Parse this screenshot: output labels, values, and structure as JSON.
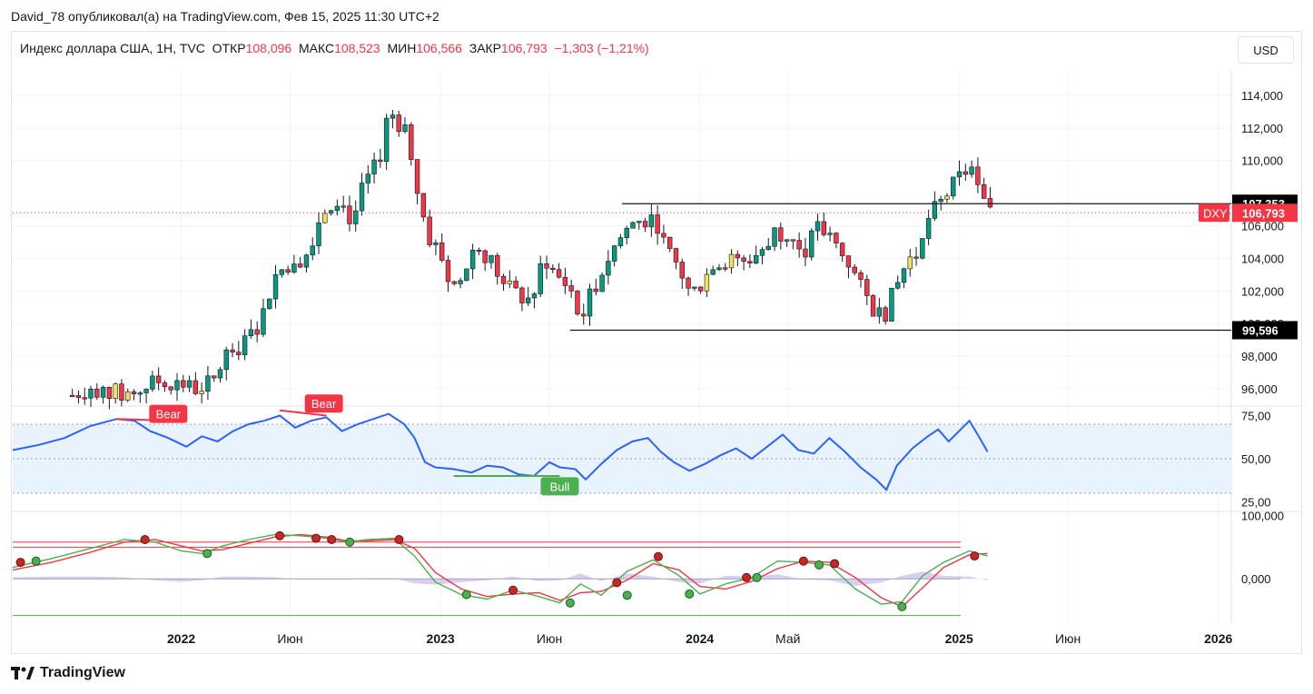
{
  "header": {
    "published": "David_78 опубликовал(а) на TradingView.com, Фев 15, 2025 11:30 UTC+2"
  },
  "legend": {
    "symbol": "Индекс доллара США, 1Н, TVC",
    "open_label": "ОТКР",
    "open": "108,096",
    "high_label": "МАКС",
    "high": "108,523",
    "low_label": "МИН",
    "low": "106,566",
    "close_label": "ЗАКР",
    "close": "106,793",
    "change": "−1,303 (−1,21%)"
  },
  "currency_button": "USD",
  "brand": {
    "name": "TradingView",
    "logo": "tradingview-logo-icon"
  },
  "colors": {
    "up": "#089981",
    "down": "#f23645",
    "rsi": "#2962ff",
    "highlight": "#f2e15c"
  },
  "chart_data": {
    "type": "candlestick",
    "series_name": "DXY",
    "price_axis": {
      "ticks": [
        "114,000",
        "112,000",
        "110,000",
        "106,000",
        "104,000",
        "102,000",
        "100,000",
        "98,000",
        "96,000"
      ],
      "range": [
        95.0,
        115.5
      ]
    },
    "x_axis": {
      "labels": [
        {
          "text": "2022",
          "t": 2022.0,
          "bold": true
        },
        {
          "text": "Июн",
          "t": 2022.42,
          "bold": false
        },
        {
          "text": "2023",
          "t": 2023.0,
          "bold": true
        },
        {
          "text": "Июн",
          "t": 2023.42,
          "bold": false
        },
        {
          "text": "2024",
          "t": 2024.0,
          "bold": true
        },
        {
          "text": "Май",
          "t": 2024.34,
          "bold": false
        },
        {
          "text": "2025",
          "t": 2025.0,
          "bold": true
        },
        {
          "text": "Июн",
          "t": 2025.42,
          "bold": false
        },
        {
          "text": "2026",
          "t": 2026.0,
          "bold": true
        }
      ],
      "range": [
        2021.35,
        2026.05
      ]
    },
    "price_path": [
      [
        2021.58,
        95.6
      ],
      [
        2021.65,
        96.1
      ],
      [
        2021.72,
        95.8
      ],
      [
        2021.8,
        95.6
      ],
      [
        2021.87,
        96.2
      ],
      [
        2021.93,
        96.6
      ],
      [
        2022.0,
        96.2
      ],
      [
        2022.06,
        96.0
      ],
      [
        2022.12,
        96.4
      ],
      [
        2022.18,
        98.3
      ],
      [
        2022.24,
        98.7
      ],
      [
        2022.3,
        99.9
      ],
      [
        2022.36,
        102.9
      ],
      [
        2022.42,
        103.8
      ],
      [
        2022.48,
        104.2
      ],
      [
        2022.54,
        106.8
      ],
      [
        2022.6,
        107.8
      ],
      [
        2022.66,
        106.3
      ],
      [
        2022.71,
        108.7
      ],
      [
        2022.76,
        109.8
      ],
      [
        2022.8,
        113.1
      ],
      [
        2022.84,
        112.3
      ],
      [
        2022.88,
        111.1
      ],
      [
        2022.92,
        107.3
      ],
      [
        2022.96,
        105.1
      ],
      [
        2023.0,
        104.3
      ],
      [
        2023.04,
        102.2
      ],
      [
        2023.08,
        102.7
      ],
      [
        2023.13,
        104.8
      ],
      [
        2023.18,
        104.2
      ],
      [
        2023.24,
        102.5
      ],
      [
        2023.3,
        101.7
      ],
      [
        2023.35,
        101.4
      ],
      [
        2023.4,
        104.1
      ],
      [
        2023.44,
        103.0
      ],
      [
        2023.5,
        102.2
      ],
      [
        2023.54,
        100.1
      ],
      [
        2023.58,
        101.8
      ],
      [
        2023.63,
        103.5
      ],
      [
        2023.68,
        105.0
      ],
      [
        2023.74,
        106.2
      ],
      [
        2023.78,
        106.4
      ],
      [
        2023.83,
        106.5
      ],
      [
        2023.87,
        104.4
      ],
      [
        2023.92,
        103.4
      ],
      [
        2023.96,
        101.9
      ],
      [
        2024.0,
        102.1
      ],
      [
        2024.05,
        103.8
      ],
      [
        2024.1,
        103.9
      ],
      [
        2024.16,
        103.8
      ],
      [
        2024.21,
        104.1
      ],
      [
        2024.25,
        104.8
      ],
      [
        2024.3,
        105.8
      ],
      [
        2024.35,
        105.2
      ],
      [
        2024.4,
        104.4
      ],
      [
        2024.46,
        105.9
      ],
      [
        2024.52,
        104.9
      ],
      [
        2024.57,
        103.9
      ],
      [
        2024.62,
        102.2
      ],
      [
        2024.67,
        100.9
      ],
      [
        2024.71,
        100.5
      ],
      [
        2024.76,
        102.3
      ],
      [
        2024.8,
        103.9
      ],
      [
        2024.85,
        104.4
      ],
      [
        2024.88,
        106.4
      ],
      [
        2024.92,
        107.2
      ],
      [
        2024.96,
        108.1
      ],
      [
        2025.0,
        108.9
      ],
      [
        2025.04,
        109.6
      ],
      [
        2025.08,
        107.9
      ],
      [
        2025.12,
        106.8
      ]
    ],
    "levels": [
      {
        "label": "107,353",
        "value": 107.353,
        "start": 2023.7
      },
      {
        "label": "99,596",
        "value": 99.596,
        "start": 2023.5
      }
    ],
    "last_price": {
      "label": "106,793",
      "value": 106.793,
      "tag": "DXY"
    },
    "rsi": {
      "ticks": [
        "75,00",
        "50,00",
        "25,00"
      ],
      "range": [
        20,
        80
      ],
      "band": [
        30,
        70
      ],
      "path": [
        [
          2021.35,
          55
        ],
        [
          2021.45,
          58
        ],
        [
          2021.55,
          62
        ],
        [
          2021.65,
          69
        ],
        [
          2021.75,
          73
        ],
        [
          2021.82,
          72
        ],
        [
          2021.88,
          66
        ],
        [
          2021.95,
          62
        ],
        [
          2022.02,
          57
        ],
        [
          2022.08,
          63
        ],
        [
          2022.14,
          60
        ],
        [
          2022.2,
          66
        ],
        [
          2022.26,
          70
        ],
        [
          2022.32,
          72
        ],
        [
          2022.38,
          75
        ],
        [
          2022.44,
          68
        ],
        [
          2022.5,
          72
        ],
        [
          2022.56,
          74
        ],
        [
          2022.62,
          66
        ],
        [
          2022.68,
          70
        ],
        [
          2022.74,
          73
        ],
        [
          2022.8,
          76
        ],
        [
          2022.86,
          70
        ],
        [
          2022.9,
          62
        ],
        [
          2022.94,
          48
        ],
        [
          2022.98,
          45
        ],
        [
          2023.05,
          44
        ],
        [
          2023.12,
          42
        ],
        [
          2023.18,
          46
        ],
        [
          2023.24,
          45
        ],
        [
          2023.3,
          41
        ],
        [
          2023.36,
          40
        ],
        [
          2023.42,
          48
        ],
        [
          2023.46,
          45
        ],
        [
          2023.52,
          44
        ],
        [
          2023.56,
          38
        ],
        [
          2023.62,
          47
        ],
        [
          2023.68,
          55
        ],
        [
          2023.74,
          60
        ],
        [
          2023.8,
          62
        ],
        [
          2023.85,
          54
        ],
        [
          2023.9,
          48
        ],
        [
          2023.96,
          43
        ],
        [
          2024.02,
          47
        ],
        [
          2024.08,
          52
        ],
        [
          2024.14,
          56
        ],
        [
          2024.2,
          50
        ],
        [
          2024.26,
          57
        ],
        [
          2024.32,
          64
        ],
        [
          2024.38,
          55
        ],
        [
          2024.44,
          53
        ],
        [
          2024.5,
          62
        ],
        [
          2024.56,
          54
        ],
        [
          2024.62,
          45
        ],
        [
          2024.68,
          38
        ],
        [
          2024.72,
          32
        ],
        [
          2024.76,
          46
        ],
        [
          2024.82,
          56
        ],
        [
          2024.88,
          63
        ],
        [
          2024.92,
          67
        ],
        [
          2024.96,
          60
        ],
        [
          2025.0,
          66
        ],
        [
          2025.04,
          72
        ],
        [
          2025.08,
          62
        ],
        [
          2025.11,
          54
        ]
      ],
      "labels": [
        {
          "text": "Bear",
          "t": 2021.95,
          "v": 76
        },
        {
          "text": "Bear",
          "t": 2022.55,
          "v": 82
        },
        {
          "text": "Bull",
          "t": 2023.46,
          "v": 34
        }
      ]
    },
    "oscillator": {
      "ticks": [
        "100,000",
        "0,000"
      ],
      "range": [
        -70,
        105
      ],
      "upper_lines": [
        58,
        50
      ],
      "lower_line": -58,
      "fast": [
        [
          2021.35,
          18
        ],
        [
          2021.5,
          32
        ],
        [
          2021.65,
          48
        ],
        [
          2021.78,
          62
        ],
        [
          2021.9,
          58
        ],
        [
          2022.0,
          44
        ],
        [
          2022.08,
          40
        ],
        [
          2022.16,
          52
        ],
        [
          2022.26,
          62
        ],
        [
          2022.36,
          70
        ],
        [
          2022.46,
          68
        ],
        [
          2022.56,
          64
        ],
        [
          2022.64,
          58
        ],
        [
          2022.72,
          62
        ],
        [
          2022.82,
          64
        ],
        [
          2022.9,
          36
        ],
        [
          2022.98,
          -5
        ],
        [
          2023.08,
          -25
        ],
        [
          2023.18,
          -32
        ],
        [
          2023.28,
          -18
        ],
        [
          2023.38,
          -28
        ],
        [
          2023.46,
          -38
        ],
        [
          2023.54,
          -8
        ],
        [
          2023.62,
          -26
        ],
        [
          2023.72,
          12
        ],
        [
          2023.82,
          30
        ],
        [
          2023.92,
          5
        ],
        [
          2024.0,
          -24
        ],
        [
          2024.1,
          -8
        ],
        [
          2024.2,
          2
        ],
        [
          2024.3,
          28
        ],
        [
          2024.4,
          26
        ],
        [
          2024.5,
          22
        ],
        [
          2024.6,
          -16
        ],
        [
          2024.7,
          -40
        ],
        [
          2024.78,
          -36
        ],
        [
          2024.86,
          5
        ],
        [
          2024.94,
          26
        ],
        [
          2025.04,
          44
        ],
        [
          2025.11,
          36
        ]
      ],
      "slow": [
        [
          2021.35,
          14
        ],
        [
          2021.5,
          26
        ],
        [
          2021.65,
          42
        ],
        [
          2021.78,
          58
        ],
        [
          2021.9,
          62
        ],
        [
          2022.0,
          52
        ],
        [
          2022.08,
          44
        ],
        [
          2022.16,
          46
        ],
        [
          2022.26,
          56
        ],
        [
          2022.36,
          66
        ],
        [
          2022.46,
          70
        ],
        [
          2022.56,
          66
        ],
        [
          2022.64,
          60
        ],
        [
          2022.72,
          60
        ],
        [
          2022.82,
          62
        ],
        [
          2022.9,
          48
        ],
        [
          2022.98,
          10
        ],
        [
          2023.08,
          -16
        ],
        [
          2023.18,
          -28
        ],
        [
          2023.28,
          -24
        ],
        [
          2023.38,
          -22
        ],
        [
          2023.46,
          -34
        ],
        [
          2023.54,
          -22
        ],
        [
          2023.62,
          -20
        ],
        [
          2023.72,
          -2
        ],
        [
          2023.82,
          24
        ],
        [
          2023.92,
          14
        ],
        [
          2024.0,
          -12
        ],
        [
          2024.1,
          -16
        ],
        [
          2024.2,
          -4
        ],
        [
          2024.3,
          16
        ],
        [
          2024.4,
          28
        ],
        [
          2024.5,
          26
        ],
        [
          2024.6,
          2
        ],
        [
          2024.7,
          -30
        ],
        [
          2024.78,
          -44
        ],
        [
          2024.86,
          -14
        ],
        [
          2024.94,
          18
        ],
        [
          2025.04,
          38
        ],
        [
          2025.11,
          40
        ]
      ],
      "dots_up": [
        [
          2021.44,
          28
        ],
        [
          2022.1,
          40
        ],
        [
          2022.65,
          58
        ],
        [
          2023.1,
          -25
        ],
        [
          2023.5,
          -38
        ],
        [
          2023.72,
          -26
        ],
        [
          2023.96,
          -24
        ],
        [
          2024.22,
          2
        ],
        [
          2024.46,
          22
        ],
        [
          2024.78,
          -44
        ]
      ],
      "dots_down": [
        [
          2021.38,
          26
        ],
        [
          2021.86,
          62
        ],
        [
          2022.38,
          68
        ],
        [
          2022.52,
          64
        ],
        [
          2022.58,
          62
        ],
        [
          2022.84,
          62
        ],
        [
          2023.28,
          -18
        ],
        [
          2023.68,
          -6
        ],
        [
          2023.84,
          35
        ],
        [
          2024.18,
          2
        ],
        [
          2024.4,
          28
        ],
        [
          2024.52,
          24
        ],
        [
          2025.06,
          36
        ]
      ]
    }
  }
}
